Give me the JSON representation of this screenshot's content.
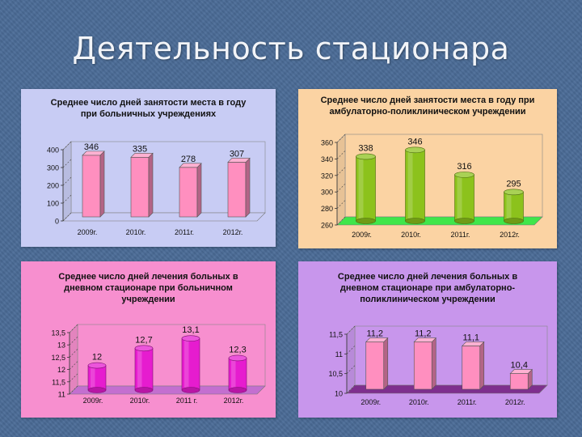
{
  "slide": {
    "title": "Деятельность стационара"
  },
  "colors": {
    "background": "#4a6b96"
  },
  "chart_data": [
    {
      "id": "c1",
      "type": "bar",
      "title_lines": [
        "Среднее число дней занятости места в году",
        "при больничных учреждениях"
      ],
      "categories": [
        "2009г.",
        "2010г.",
        "2011г.",
        "2012г."
      ],
      "values": [
        346,
        335,
        278,
        307
      ],
      "value_labels": [
        "346",
        "335",
        "278",
        "307"
      ],
      "y_ticks": [
        "400",
        "300",
        "200",
        "100",
        "0"
      ],
      "ylim": [
        0,
        400
      ],
      "bar_shape": "box",
      "bar_color": "#ff8fbf",
      "panel_bg": "#c8ccf4"
    },
    {
      "id": "c2",
      "type": "bar",
      "title_lines": [
        "Среднее число дней занятости места в году при",
        "амбулаторно-поликлиническом учреждении"
      ],
      "categories": [
        "2009г.",
        "2010г.",
        "2011г.",
        "2012г."
      ],
      "values": [
        338,
        346,
        316,
        295
      ],
      "value_labels": [
        "338",
        "346",
        "316",
        "295"
      ],
      "y_ticks": [
        "360",
        "340",
        "320",
        "300",
        "280",
        "260"
      ],
      "ylim": [
        260,
        360
      ],
      "bar_shape": "cylinder",
      "bar_color": "#8cc21c",
      "panel_bg": "#fbd3a3"
    },
    {
      "id": "c3",
      "type": "bar",
      "title_lines": [
        "Среднее число дней лечения больных в",
        "дневном стационаре при больничном",
        "учреждении"
      ],
      "categories": [
        "2009г.",
        "2010г.",
        "2011 г.",
        "2012г."
      ],
      "values": [
        12,
        12.7,
        13.1,
        12.3
      ],
      "value_labels": [
        "12",
        "12,7",
        "13,1",
        "12,3"
      ],
      "y_ticks": [
        "13,5",
        "13",
        "12,5",
        "12",
        "11,5",
        "11"
      ],
      "ylim": [
        11,
        13.5
      ],
      "bar_shape": "cylinder",
      "bar_color": "#e61ccf",
      "panel_bg": "#f78fcf"
    },
    {
      "id": "c4",
      "type": "bar",
      "title_lines": [
        "Среднее число дней лечения больных в",
        "дневном стационаре при амбулаторно-",
        "поликлиническом учреждении"
      ],
      "categories": [
        "2009г.",
        "2010г.",
        "2011г.",
        "2012г."
      ],
      "values": [
        11.2,
        11.2,
        11.1,
        10.4
      ],
      "value_labels": [
        "11,2",
        "11,2",
        "11,1",
        "10,4"
      ],
      "y_ticks": [
        "11,5",
        "11",
        "10,5",
        "10"
      ],
      "ylim": [
        10,
        11.5
      ],
      "bar_shape": "box",
      "bar_color": "#ff8fbf",
      "panel_bg": "#c896ec"
    }
  ]
}
